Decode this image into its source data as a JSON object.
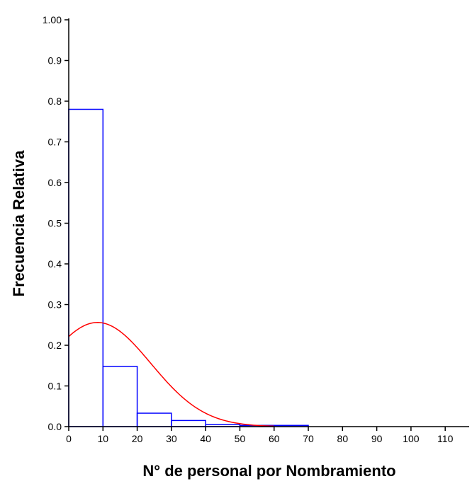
{
  "chart_data": {
    "type": "bar",
    "xlabel": "N° de personal por Nombramiento",
    "ylabel": "Frecuencia Relativa",
    "xlim": [
      0,
      117
    ],
    "ylim": [
      0,
      1
    ],
    "x_ticks": [
      0,
      10,
      20,
      30,
      40,
      50,
      60,
      70,
      80,
      90,
      100,
      110
    ],
    "x_tick_labels": [
      "0",
      "10",
      "20",
      "30",
      "40",
      "50",
      "60",
      "70",
      "80",
      "90",
      "100",
      "110"
    ],
    "y_ticks": [
      0,
      0.1,
      0.2,
      0.3,
      0.4,
      0.5,
      0.6,
      0.7,
      0.8,
      0.9,
      1.0
    ],
    "y_tick_labels": [
      "0.0",
      "0.1",
      "0.2",
      "0.3",
      "0.4",
      "0.5",
      "0.6",
      "0.7",
      "0.8",
      "0.9",
      "1.00"
    ],
    "grid": false,
    "bins": [
      {
        "start": 0,
        "end": 10,
        "value": 0.78
      },
      {
        "start": 10,
        "end": 20,
        "value": 0.148
      },
      {
        "start": 20,
        "end": 30,
        "value": 0.033
      },
      {
        "start": 30,
        "end": 40,
        "value": 0.015
      },
      {
        "start": 40,
        "end": 50,
        "value": 0.005
      },
      {
        "start": 50,
        "end": 60,
        "value": 0.003
      },
      {
        "start": 60,
        "end": 70,
        "value": 0.003
      }
    ],
    "normal_curve": {
      "mean": 8.4,
      "sd": 15.6,
      "peak": 0.256
    },
    "colors": {
      "bars": "#0000ff",
      "curve": "#ff0000",
      "axes": "#000000"
    }
  }
}
